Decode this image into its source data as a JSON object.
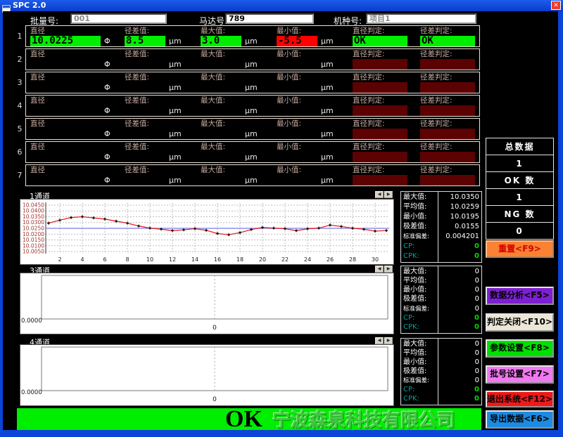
{
  "window": {
    "title": "SPC 2.0"
  },
  "icons": {
    "close": "✕",
    "scroll_left": "◀",
    "scroll_right": "▶",
    "app_icon": "window-app-icon"
  },
  "header": {
    "fields": [
      {
        "label": "批量号:",
        "value": "001"
      },
      {
        "label": "马达号:",
        "value": "789"
      },
      {
        "label": "机种号:",
        "value": "项目1"
      }
    ]
  },
  "table": {
    "labels": [
      "直径",
      "径差值:",
      "最大值:",
      "最小值:",
      "直径判定:",
      "径差判定:"
    ],
    "units": {
      "phi": "Φ",
      "um": "μm"
    },
    "rows": [
      {
        "num": "1",
        "active": true,
        "min_ng": true,
        "diameter": "10.0225",
        "diff": "8.5",
        "max": "3.0",
        "min": "-5.5",
        "dia_judge": "OK",
        "diff_judge": "OK"
      },
      {
        "num": "2",
        "active": false,
        "diameter": "",
        "diff": "",
        "max": "",
        "min": "",
        "dia_judge": "",
        "diff_judge": ""
      },
      {
        "num": "3",
        "active": false,
        "diameter": "",
        "diff": "",
        "max": "",
        "min": "",
        "dia_judge": "",
        "diff_judge": ""
      },
      {
        "num": "4",
        "active": false,
        "diameter": "",
        "diff": "",
        "max": "",
        "min": "",
        "dia_judge": "",
        "diff_judge": ""
      },
      {
        "num": "5",
        "active": false,
        "diameter": "",
        "diff": "",
        "max": "",
        "min": "",
        "dia_judge": "",
        "diff_judge": ""
      },
      {
        "num": "6",
        "active": false,
        "diameter": "",
        "diff": "",
        "max": "",
        "min": "",
        "dia_judge": "",
        "diff_judge": ""
      },
      {
        "num": "7",
        "active": false,
        "diameter": "",
        "diff": "",
        "max": "",
        "min": "",
        "dia_judge": "",
        "diff_judge": ""
      }
    ]
  },
  "chart_data": [
    {
      "type": "line",
      "title": "1通道",
      "x": [
        1,
        2,
        3,
        4,
        5,
        6,
        7,
        8,
        9,
        10,
        11,
        12,
        13,
        14,
        15,
        16,
        17,
        18,
        19,
        20,
        21,
        22,
        23,
        24,
        25,
        26,
        27,
        28,
        29,
        30,
        31
      ],
      "values": [
        10.0295,
        10.032,
        10.0343,
        10.035,
        10.034,
        10.033,
        10.0312,
        10.0295,
        10.027,
        10.0252,
        10.0243,
        10.023,
        10.0237,
        10.0247,
        10.0233,
        10.0205,
        10.0195,
        10.0213,
        10.024,
        10.0258,
        10.0252,
        10.0247,
        10.023,
        10.0246,
        10.0252,
        10.0278,
        10.0266,
        10.0251,
        10.0242,
        10.0226,
        10.0231
      ],
      "ylim": [
        10.005,
        10.045
      ],
      "yticks": [
        "10.0050",
        "10.0100",
        "10.0150",
        "10.0200",
        "10.0250",
        "10.0300",
        "10.0350",
        "10.0400",
        "10.0450"
      ],
      "xticks": [
        2,
        4,
        6,
        8,
        10,
        12,
        14,
        16,
        18,
        20,
        22,
        24,
        26,
        28,
        30
      ],
      "center_line": 10.025,
      "grid": true,
      "colors": {
        "line": "#e82222",
        "marker": "#111111",
        "center_line": "#8f8fe8",
        "ytick_text": "#a03434"
      }
    },
    {
      "type": "line",
      "title": "3通道",
      "x": [],
      "values": [],
      "y_axis_label": "0.0000",
      "x_axis_label": "0"
    },
    {
      "type": "line",
      "title": "4通道",
      "x": [],
      "values": [],
      "y_axis_label": "0.0000",
      "x_axis_label": "0"
    }
  ],
  "stats": {
    "labels": [
      "最大值:",
      "平均值:",
      "最小值:",
      "极差值:",
      "标准偏差:",
      "CP:",
      "CPK:"
    ],
    "panels": [
      {
        "values": [
          "10.0350",
          "10.0259",
          "10.0195",
          "0.0155",
          "0.004201",
          "0",
          "0"
        ]
      },
      {
        "values": [
          "0",
          "0",
          "0",
          "0",
          "0",
          "0",
          "0"
        ]
      },
      {
        "values": [
          "0",
          "0",
          "0",
          "0",
          "0",
          "0",
          "0"
        ]
      }
    ]
  },
  "sidebar": {
    "counter": {
      "cells": [
        "总数据",
        "1",
        "OK 数",
        "1",
        "NG 数",
        "0"
      ],
      "reset": "重置<F9>",
      "reset_color": "#fa8232"
    },
    "buttons": [
      {
        "label": "数据分析<F5>",
        "color": "#7d20d0"
      },
      {
        "label": "判定关闭<F10>",
        "color": "#ece6d6"
      },
      {
        "label": "参数设置<F8>",
        "color": "#00e000"
      },
      {
        "label": "批号设置<F7>",
        "color": "#f078f0"
      },
      {
        "label": "退出系统<F12>",
        "color": "#f01818"
      },
      {
        "label": "导出数据<F6>",
        "color": "#1e8ae0"
      }
    ]
  },
  "footer": {
    "status": "OK",
    "watermark": "宁波森泉科技有限公司",
    "color": "#00ee00"
  },
  "colors": {
    "ok_green": "#00ee00",
    "ng_red": "#ff0000",
    "inactive_judge": "#5c0202",
    "window_blue": "#0a44d8"
  }
}
